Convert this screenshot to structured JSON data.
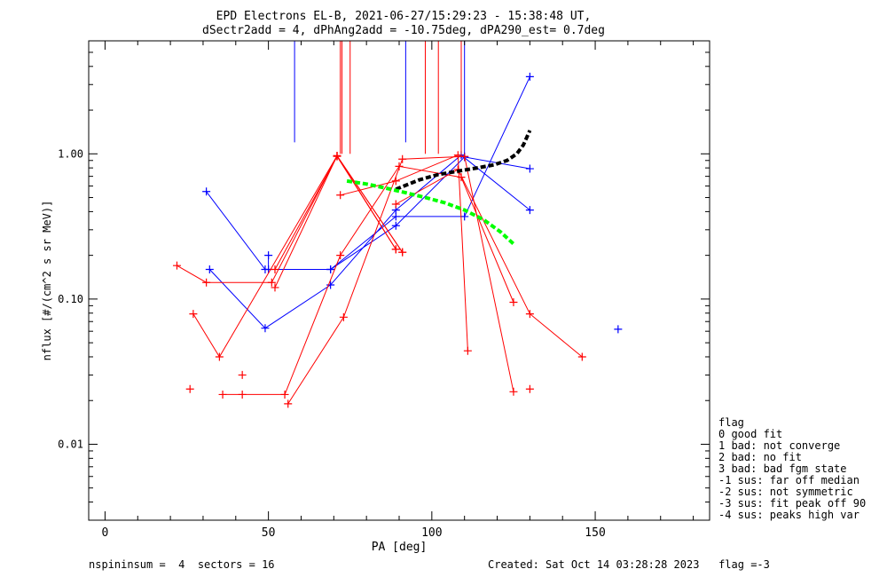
{
  "chart_data": {
    "type": "line",
    "title": "EPD Electrons EL-B, 2021-06-27/15:29:23 - 15:38:48 UT,",
    "subtitle": "dSectr2add = 4, dPhAng2add = -10.75deg, dPA290_est=   0.7deg",
    "xlabel": "PA [deg]",
    "ylabel": "nflux [#/(cm^2 s sr MeV)]",
    "xlim": [
      -5,
      185
    ],
    "ylim": [
      0.003,
      6
    ],
    "yscale": "log",
    "x_ticks": [
      0,
      50,
      100,
      150
    ],
    "y_ticks": [
      {
        "value": 0.01,
        "label": "0.01"
      },
      {
        "value": 0.1,
        "label": "0.10"
      },
      {
        "value": 1.0,
        "label": "1.00"
      }
    ],
    "grid": false,
    "colors": {
      "blue": "#0000ff",
      "red": "#ff0000",
      "black": "#000000",
      "green": "#00ff00"
    },
    "series": [
      {
        "color": "#0000ff",
        "points": [
          [
            31,
            0.55
          ],
          [
            49,
            0.16
          ],
          [
            69,
            0.16
          ],
          [
            89,
            0.32
          ],
          [
            110,
            0.95
          ],
          [
            130,
            0.79
          ]
        ]
      },
      {
        "color": "#0000ff",
        "points": [
          [
            32,
            0.16
          ],
          [
            49,
            0.063
          ],
          [
            69,
            0.125
          ],
          [
            89,
            0.41
          ],
          [
            109,
            0.98
          ],
          [
            130,
            0.41
          ]
        ]
      },
      {
        "color": "#0000ff",
        "points": [
          [
            50,
            0.2
          ],
          [
            50,
            0.16
          ],
          [
            69,
            0.16
          ],
          [
            89,
            0.37
          ],
          [
            110,
            0.37
          ],
          [
            130,
            3.4
          ]
        ]
      },
      {
        "color": "#ff0000",
        "points": [
          [
            22,
            0.17
          ],
          [
            31,
            0.13
          ],
          [
            51,
            0.13
          ],
          [
            71,
            0.97
          ],
          [
            91,
            0.21
          ]
        ]
      },
      {
        "color": "#ff0000",
        "points": [
          [
            27,
            0.079
          ],
          [
            35,
            0.04
          ],
          [
            71,
            0.97
          ],
          [
            89,
            0.22
          ]
        ]
      },
      {
        "color": "#ff0000",
        "points": [
          [
            52,
            0.12
          ],
          [
            71,
            0.97
          ],
          [
            91,
            0.21
          ]
        ]
      },
      {
        "color": "#ff0000",
        "points": [
          [
            52,
            0.16
          ],
          [
            71,
            0.96
          ],
          [
            89,
            0.22
          ]
        ]
      },
      {
        "color": "#ff0000",
        "points": [
          [
            36,
            0.022
          ],
          [
            42,
            0.022
          ],
          [
            55,
            0.022
          ],
          [
            72,
            0.2
          ],
          [
            90,
            0.82
          ],
          [
            109,
            0.69
          ],
          [
            125,
            0.095
          ]
        ]
      },
      {
        "color": "#ff0000",
        "points": [
          [
            56,
            0.019
          ],
          [
            73,
            0.075
          ],
          [
            91,
            0.92
          ],
          [
            110,
            0.96
          ],
          [
            125,
            0.023
          ]
        ]
      },
      {
        "color": "#ff0000",
        "points": [
          [
            72,
            0.52
          ],
          [
            89,
            0.65
          ],
          [
            108,
            0.98
          ],
          [
            111,
            0.044
          ]
        ]
      },
      {
        "color": "#ff0000",
        "points": [
          [
            89,
            0.45
          ],
          [
            108,
            0.78
          ],
          [
            130,
            0.079
          ],
          [
            146,
            0.04
          ]
        ]
      },
      {
        "color": "#ff0000",
        "points": [
          [
            130,
            0.024
          ]
        ]
      },
      {
        "color": "#ff0000",
        "points": [
          [
            26,
            0.024
          ]
        ]
      },
      {
        "color": "#ff0000",
        "points": [
          [
            42,
            0.03
          ]
        ]
      },
      {
        "color": "#0000ff",
        "points": [
          [
            157,
            0.062
          ]
        ]
      }
    ],
    "fits": [
      {
        "color": "#000000",
        "points": [
          [
            89,
            0.57
          ],
          [
            96,
            0.66
          ],
          [
            102,
            0.72
          ],
          [
            108,
            0.76
          ],
          [
            114,
            0.8
          ],
          [
            119,
            0.84
          ],
          [
            123,
            0.9
          ],
          [
            126,
            1.0
          ],
          [
            128,
            1.15
          ],
          [
            130,
            1.45
          ]
        ]
      },
      {
        "color": "#00ff00",
        "points": [
          [
            74,
            0.65
          ],
          [
            80,
            0.62
          ],
          [
            86,
            0.58
          ],
          [
            92,
            0.54
          ],
          [
            98,
            0.5
          ],
          [
            104,
            0.46
          ],
          [
            110,
            0.41
          ],
          [
            116,
            0.35
          ],
          [
            121,
            0.29
          ],
          [
            125,
            0.24
          ]
        ]
      }
    ],
    "markers": [
      {
        "x": 58,
        "color": "#0000ff",
        "ymin": 1.2
      },
      {
        "x": 72,
        "color": "#ff0000",
        "ymin": 1.0
      },
      {
        "x": 72.5,
        "color": "#ff0000",
        "ymin": 1.0
      },
      {
        "x": 75,
        "color": "#ff0000",
        "ymin": 1.0
      },
      {
        "x": 92,
        "color": "#0000ff",
        "ymin": 1.2
      },
      {
        "x": 98,
        "color": "#ff0000",
        "ymin": 1.0
      },
      {
        "x": 102,
        "color": "#ff0000",
        "ymin": 1.0
      },
      {
        "x": 109,
        "color": "#ff0000",
        "ymin": 1.0
      },
      {
        "x": 110,
        "color": "#0000ff",
        "ymin": 1.0
      }
    ]
  },
  "legend": {
    "title": "flag",
    "items": [
      " 0 good fit",
      " 1 bad: not converge",
      " 2 bad: no fit",
      " 3 bad: bad fgm state",
      "-1 sus: far off median",
      "-2 sus: not symmetric",
      "-3 sus: fit peak off 90",
      "-4 sus: peaks high var"
    ]
  },
  "footer": {
    "left": "nspininsum =  4  sectors = 16",
    "right": "Created: Sat Oct 14 03:28:28 2023   flag =-3"
  }
}
